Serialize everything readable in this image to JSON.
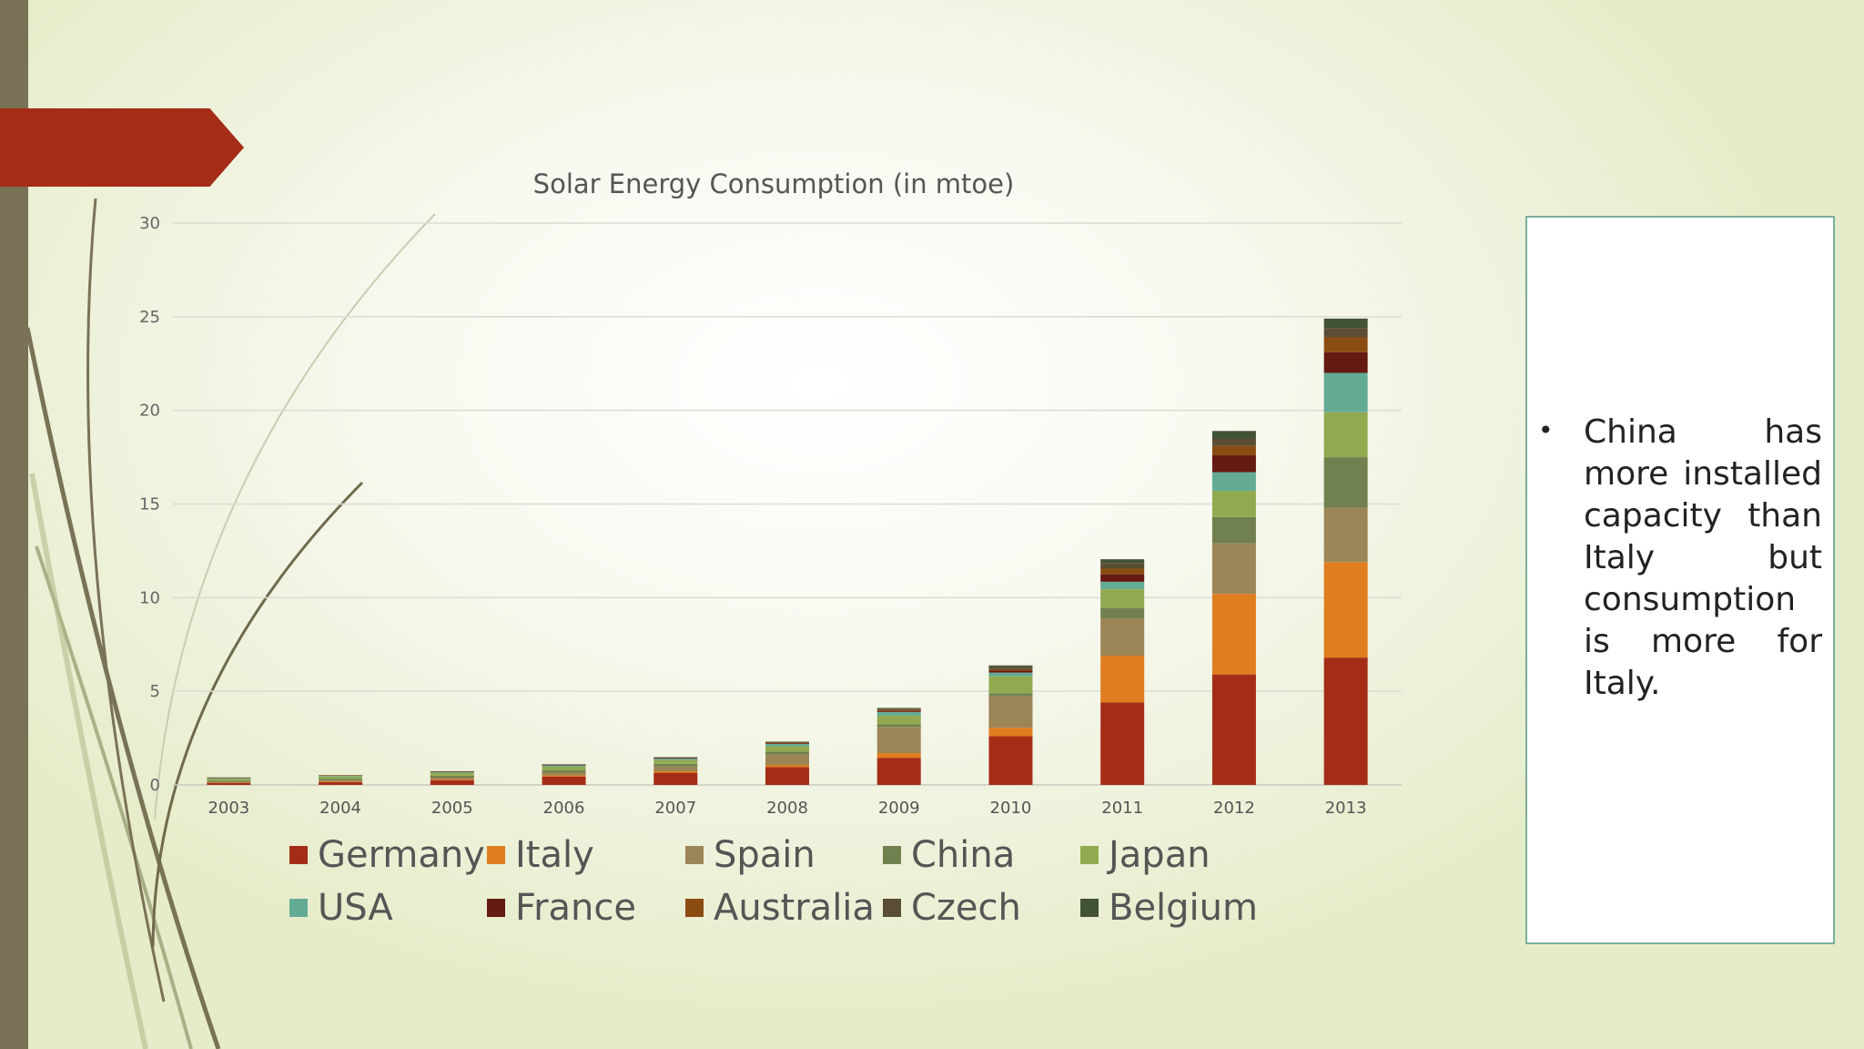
{
  "slide": {
    "bullet": "China has more installed capacity than Italy but consumption is more for Italy."
  },
  "chart_data": {
    "type": "bar",
    "stacked": true,
    "title": "Solar Energy Consumption (in mtoe)",
    "xlabel": "",
    "ylabel": "",
    "ylim": [
      0,
      30
    ],
    "yticks": [
      0,
      5,
      10,
      15,
      20,
      25,
      30
    ],
    "grid": true,
    "legend_position": "bottom",
    "categories": [
      "2003",
      "2004",
      "2005",
      "2006",
      "2007",
      "2008",
      "2009",
      "2010",
      "2011",
      "2012",
      "2013"
    ],
    "series": [
      {
        "name": "Germany",
        "color": "#a52d17",
        "values": [
          0.1,
          0.15,
          0.25,
          0.45,
          0.65,
          0.95,
          1.45,
          2.6,
          4.4,
          5.9,
          6.8
        ]
      },
      {
        "name": "Italy",
        "color": "#e07d1f",
        "values": [
          0.02,
          0.03,
          0.04,
          0.06,
          0.08,
          0.12,
          0.25,
          0.45,
          2.5,
          4.3,
          5.1
        ]
      },
      {
        "name": "Spain",
        "color": "#9c8556",
        "values": [
          0.05,
          0.07,
          0.1,
          0.15,
          0.25,
          0.55,
          1.4,
          1.7,
          2.0,
          2.7,
          2.9
        ]
      },
      {
        "name": "China",
        "color": "#71804f",
        "values": [
          0.06,
          0.08,
          0.1,
          0.12,
          0.15,
          0.15,
          0.15,
          0.15,
          0.55,
          1.4,
          2.7
        ]
      },
      {
        "name": "Japan",
        "color": "#92aa4f",
        "values": [
          0.1,
          0.12,
          0.15,
          0.2,
          0.2,
          0.3,
          0.45,
          0.9,
          1.0,
          1.4,
          2.4
        ]
      },
      {
        "name": "USA",
        "color": "#64ab95",
        "values": [
          0.05,
          0.05,
          0.06,
          0.07,
          0.08,
          0.12,
          0.2,
          0.2,
          0.4,
          1.0,
          2.1
        ]
      },
      {
        "name": "France",
        "color": "#651a12",
        "values": [
          0.01,
          0.01,
          0.01,
          0.02,
          0.02,
          0.04,
          0.06,
          0.1,
          0.4,
          0.9,
          1.1
        ]
      },
      {
        "name": "Australia",
        "color": "#8b4c12",
        "values": [
          0.01,
          0.01,
          0.02,
          0.02,
          0.03,
          0.04,
          0.06,
          0.08,
          0.3,
          0.5,
          0.8
        ]
      },
      {
        "name": "Czech",
        "color": "#5b4d34",
        "values": [
          0.0,
          0.0,
          0.0,
          0.0,
          0.01,
          0.02,
          0.05,
          0.1,
          0.3,
          0.4,
          0.5
        ]
      },
      {
        "name": "Belgium",
        "color": "#425236",
        "values": [
          0.0,
          0.0,
          0.0,
          0.01,
          0.01,
          0.02,
          0.04,
          0.1,
          0.2,
          0.4,
          0.5
        ]
      }
    ]
  }
}
